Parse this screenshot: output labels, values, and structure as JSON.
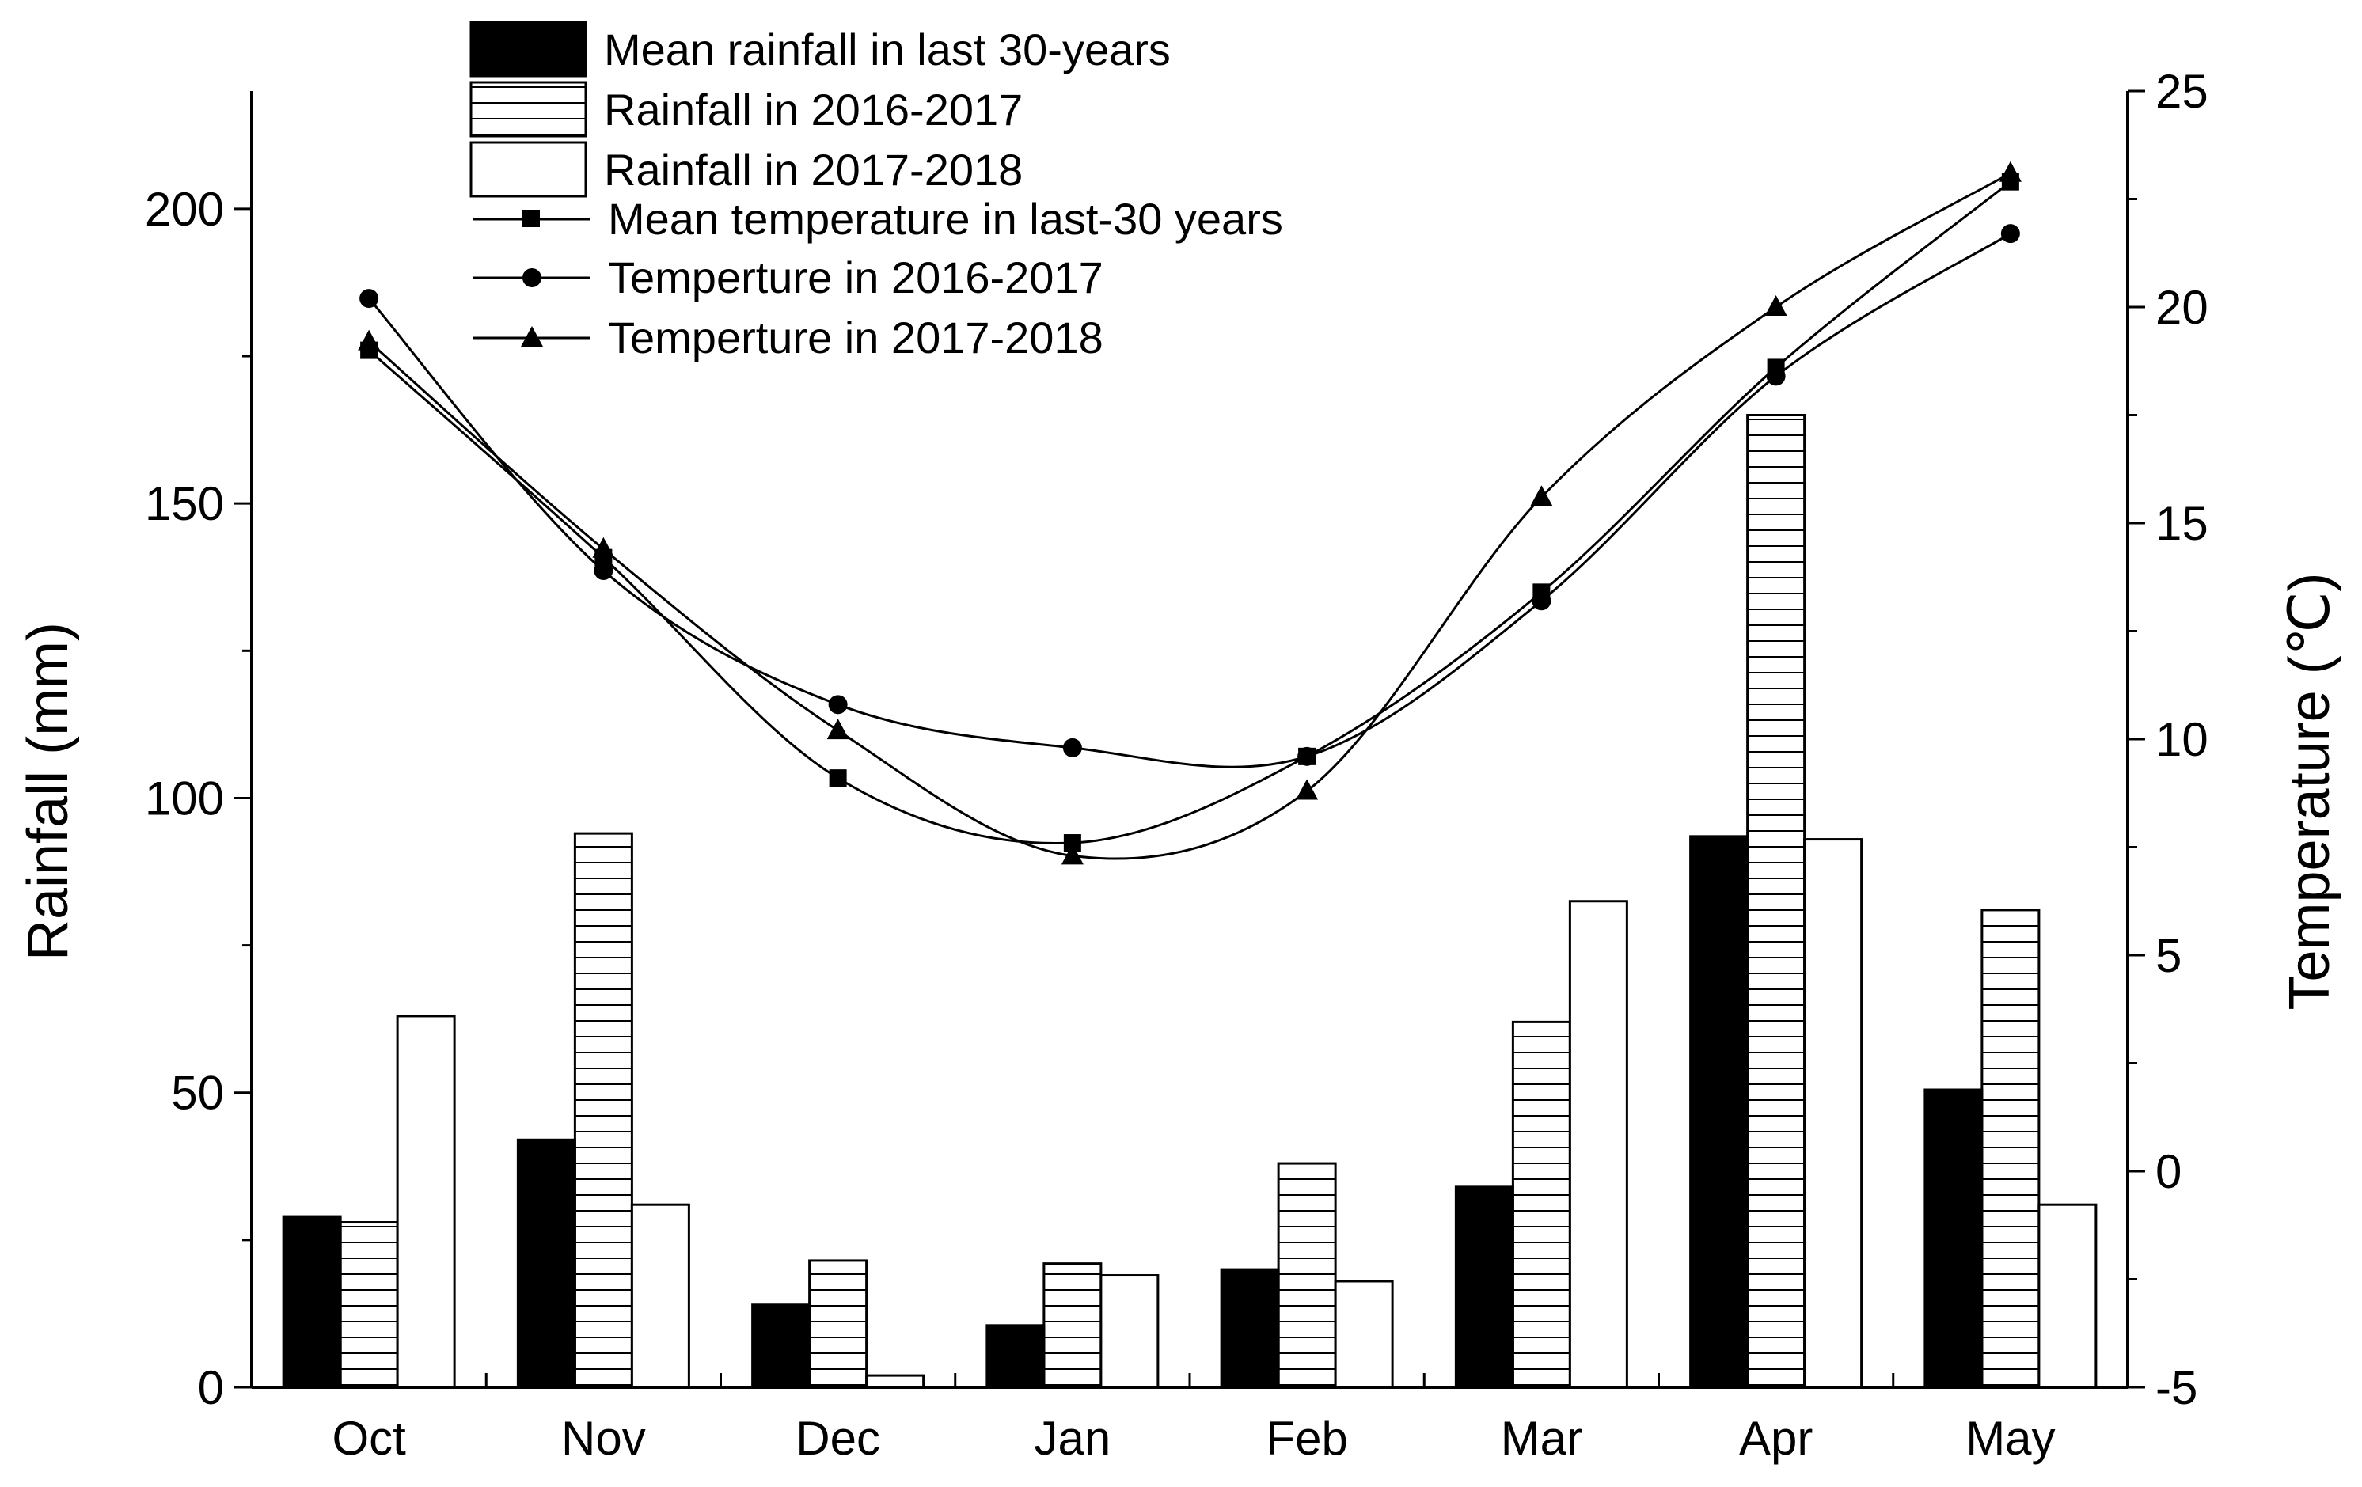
{
  "chart_data": {
    "type": "bar+line",
    "title": "",
    "categories": [
      "Oct",
      "Nov",
      "Dec",
      "Jan",
      "Feb",
      "Mar",
      "Apr",
      "May"
    ],
    "bar_series": [
      {
        "name": "Mean rainfall in last 30-years",
        "fill": "solid",
        "values": [
          29,
          42,
          14,
          10.5,
          20,
          34,
          93.5,
          50.5
        ]
      },
      {
        "name": "Rainfall in 2016-2017",
        "fill": "hatched",
        "values": [
          28,
          94,
          21.5,
          21,
          38,
          62,
          165,
          81
        ]
      },
      {
        "name": "Rainfall in 2017-2018",
        "fill": "empty",
        "values": [
          63,
          31,
          2,
          19,
          18,
          82.5,
          93,
          31
        ]
      }
    ],
    "line_series": [
      {
        "name": "Mean temperature in last-30 years",
        "marker": "square",
        "values": [
          19,
          14.2,
          9.1,
          7.6,
          9.6,
          13.4,
          18.6,
          22.9
        ]
      },
      {
        "name": "Temperture in 2016-2017",
        "marker": "circle",
        "values": [
          20.2,
          13.9,
          10.8,
          9.8,
          9.6,
          13.2,
          18.4,
          21.7
        ]
      },
      {
        "name": "Temperture in 2017-2018",
        "marker": "triangle",
        "values": [
          19.2,
          14.4,
          10.2,
          7.3,
          8.8,
          15.6,
          20,
          23.1
        ]
      }
    ],
    "xlabel": "",
    "ylabel": "Rainfall (mm)",
    "y2label": "Temperature (℃)",
    "ylim": [
      0,
      220
    ],
    "y2lim": [
      -5,
      25
    ],
    "yticks": [
      "0",
      "50",
      "100",
      "150",
      "200"
    ],
    "y2ticks": [
      "-5",
      "0",
      "5",
      "10",
      "15",
      "20",
      "25"
    ],
    "legend_position": "top-center",
    "colors": {
      "ink": "#000000",
      "paper": "#ffffff"
    }
  }
}
